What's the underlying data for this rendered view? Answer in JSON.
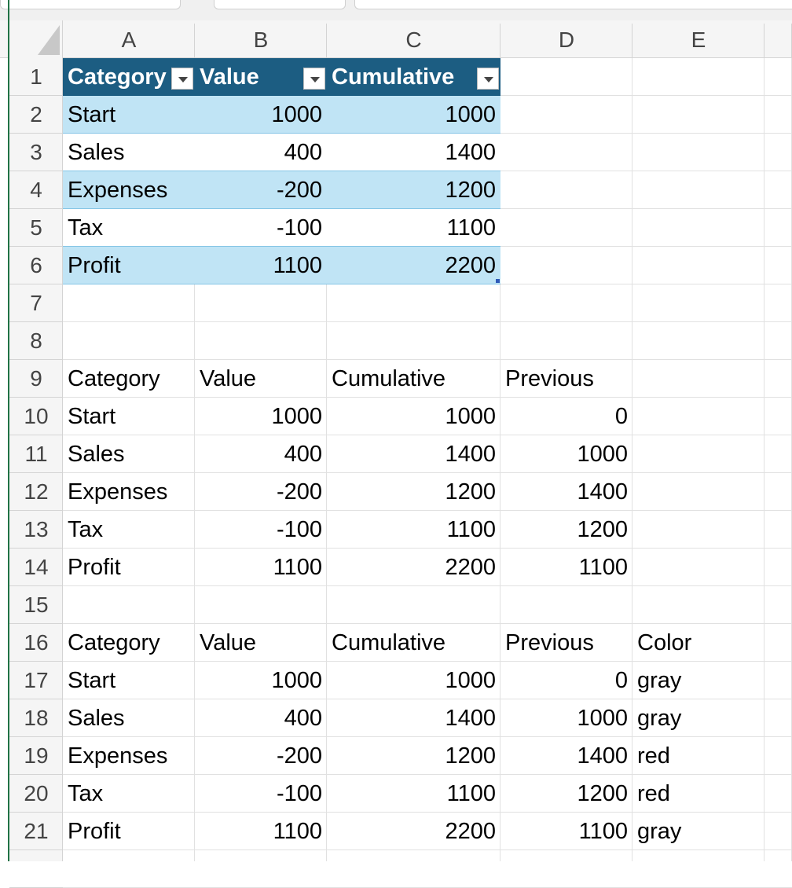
{
  "grid": {
    "columns": [
      "A",
      "B",
      "C",
      "D",
      "E"
    ],
    "row_numbers": [
      1,
      2,
      3,
      4,
      5,
      6,
      7,
      8,
      9,
      10,
      11,
      12,
      13,
      14,
      15,
      16,
      17,
      18,
      19,
      20,
      21
    ]
  },
  "table": {
    "header": [
      "Category",
      "Value",
      "Cumulative"
    ],
    "rows": [
      [
        "Start",
        1000,
        1000
      ],
      [
        "Sales",
        400,
        1400
      ],
      [
        "Expenses",
        -200,
        1200
      ],
      [
        "Tax",
        -100,
        1100
      ],
      [
        "Profit",
        1100,
        2200
      ]
    ]
  },
  "range_1": {
    "header": [
      "Category",
      "Value",
      "Cumulative",
      "Previous"
    ],
    "rows": [
      [
        "Start",
        1000,
        1000,
        0
      ],
      [
        "Sales",
        400,
        1400,
        1000
      ],
      [
        "Expenses",
        -200,
        1200,
        1400
      ],
      [
        "Tax",
        -100,
        1100,
        1200
      ],
      [
        "Profit",
        1100,
        2200,
        1100
      ]
    ]
  },
  "range_2": {
    "header": [
      "Category",
      "Value",
      "Cumulative",
      "Previous",
      "Color"
    ],
    "rows": [
      [
        "Start",
        1000,
        1000,
        0,
        "gray"
      ],
      [
        "Sales",
        400,
        1400,
        1000,
        "gray"
      ],
      [
        "Expenses",
        -200,
        1200,
        1400,
        "red"
      ],
      [
        "Tax",
        -100,
        1100,
        1200,
        "red"
      ],
      [
        "Profit",
        1100,
        2200,
        1100,
        "gray"
      ]
    ]
  }
}
